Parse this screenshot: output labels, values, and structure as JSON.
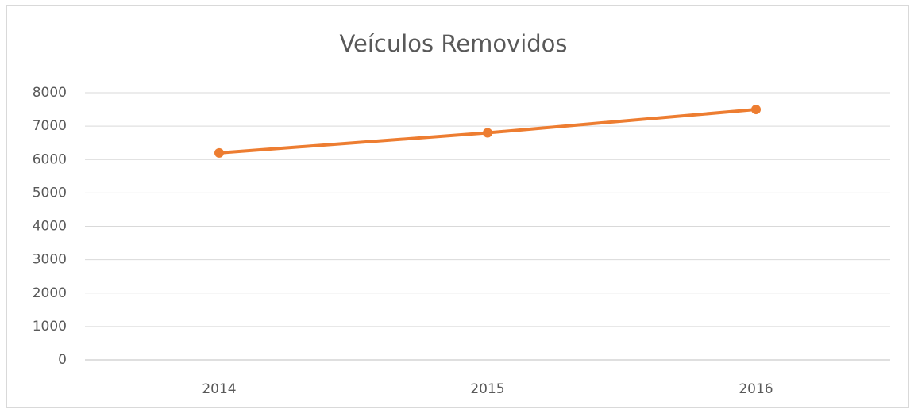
{
  "chart_data": {
    "type": "line",
    "title": "Veículos Removidos",
    "categories": [
      "2014",
      "2015",
      "2016"
    ],
    "series": [
      {
        "name": "Veículos Removidos",
        "color": "#ed7d31",
        "values": [
          6200,
          6800,
          7500
        ]
      }
    ],
    "ylim": [
      0,
      8000
    ],
    "yticks": [
      0,
      1000,
      2000,
      3000,
      4000,
      5000,
      6000,
      7000,
      8000
    ],
    "grid": true
  }
}
